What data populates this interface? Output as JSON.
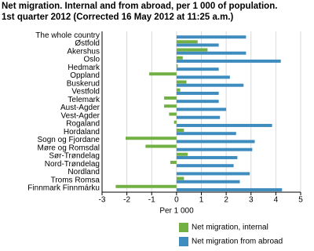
{
  "chart_data": {
    "type": "hbar",
    "title": "Net migration. Internal and from abroad, per 1 000 of population.",
    "subtitle": "1st quarter 2012 (Corrected 16 May 2012 at 11:25 a.m.)",
    "x_label": "Per 1 000",
    "categories": [
      "The whole country",
      "Østfold",
      "Akershus",
      "Oslo",
      "Hedmark",
      "Oppland",
      "Buskerud",
      "Vestfold",
      "Telemark",
      "Aust-Agder",
      "Vest-Agder",
      "Rogaland",
      "Hordaland",
      "Sogn og Fjordane",
      "Møre og Romsdal",
      "Sør-Trøndelag",
      "Nord-Trøndelag",
      "Nordland",
      "Troms Romsa",
      "Finnmark Finnmárku"
    ],
    "series": [
      {
        "name": "Net migration, internal",
        "color": "#72b043",
        "values": [
          0,
          0.85,
          1.25,
          0.25,
          0.05,
          -1.1,
          0.4,
          0.15,
          -0.5,
          -0.5,
          -0.3,
          -0.1,
          0.3,
          -2.05,
          -1.25,
          0.45,
          -0.25,
          0,
          0.3,
          -2.45
        ]
      },
      {
        "name": "Net migration from abroad",
        "color": "#3f8dbf",
        "values": [
          2.8,
          1.7,
          2.8,
          4.2,
          1.7,
          2.15,
          2.7,
          1.7,
          1.7,
          2.0,
          1.75,
          3.85,
          2.4,
          3.15,
          3.05,
          2.45,
          2.3,
          2.95,
          2.55,
          4.25
        ]
      }
    ],
    "xlim": [
      -3,
      5
    ],
    "xticks": [
      -3,
      -2,
      -1,
      0,
      1,
      2,
      3,
      4,
      5
    ],
    "grid": true
  }
}
